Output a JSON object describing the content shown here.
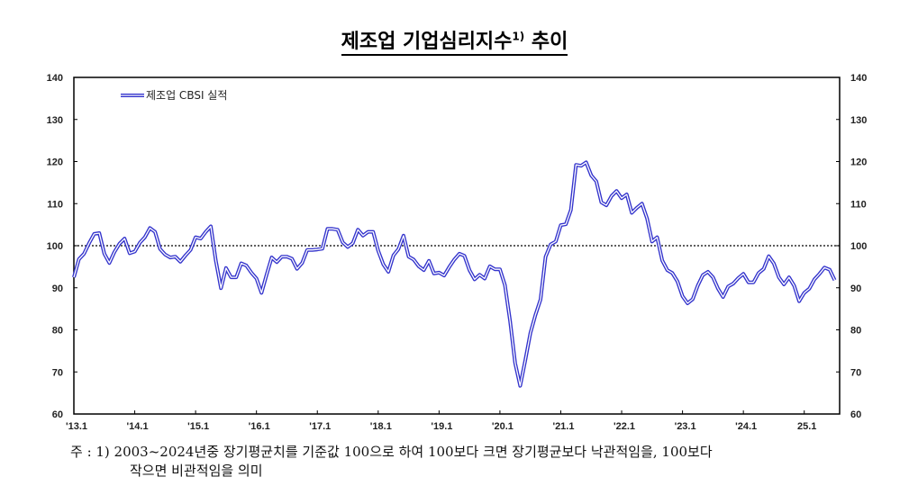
{
  "title": {
    "text": "제조업 기업심리지수",
    "sup": "1)",
    "suffix": " 추이"
  },
  "footnote": {
    "line1": "주 : 1) 2003~2024년중 장기평균치를 기준값 100으로 하여 100보다 크면 장기평균보다 낙관적임을, 100보다",
    "line2": "작으면 비관적임을 의미"
  },
  "chart_data": {
    "type": "line",
    "title": "제조업 기업심리지수1) 추이",
    "xlabel": "",
    "ylabel": "",
    "ylim": [
      60,
      140
    ],
    "yticks": [
      60,
      70,
      80,
      90,
      100,
      110,
      120,
      130,
      140
    ],
    "y_axis_both_sides": true,
    "reference_line": {
      "y": 100,
      "style": "dotted"
    },
    "xtick_labels": [
      "'13.1",
      "'14.1",
      "'15.1",
      "'16.1",
      "'17.1",
      "'18.1",
      "'19.1",
      "'20.1",
      "'21.1",
      "'22.1",
      "'23.1",
      "'24.1",
      "25.1"
    ],
    "x_start": "2013-01",
    "x_end": "2025-07",
    "frequency": "monthly",
    "legend_position": "top-left",
    "grid": false,
    "series": [
      {
        "name": "제조업 CBSI 실적",
        "color": "#3333cc",
        "values": [
          92.5,
          96.8,
          98.1,
          100.6,
          102.8,
          103,
          98.1,
          95.9,
          98.5,
          100.5,
          101.7,
          98.2,
          98.6,
          100.7,
          102,
          104.2,
          103.3,
          99.2,
          97.9,
          97.2,
          97.4,
          96.2,
          97.7,
          99,
          102,
          101.7,
          103.3,
          104.6,
          96.4,
          89.9,
          94.7,
          92.5,
          92.5,
          95.8,
          95.3,
          93.6,
          92.2,
          88.8,
          93.1,
          97.2,
          96.1,
          97.4,
          97.4,
          96.9,
          94.5,
          95.9,
          99,
          99,
          99.1,
          99.3,
          104,
          104,
          103.8,
          100.8,
          99.7,
          100.6,
          103.8,
          102.4,
          103.3,
          103.3,
          98.8,
          95.6,
          93.8,
          97.7,
          99.2,
          102.4,
          97.4,
          96.7,
          95.1,
          94.2,
          96.4,
          93.4,
          93.6,
          92.9,
          94.9,
          96.7,
          98.1,
          97.6,
          94.2,
          92,
          93.1,
          92.2,
          95.1,
          94.4,
          94.4,
          90.6,
          82.1,
          72.1,
          66.7,
          72.8,
          79.2,
          83.5,
          87.2,
          97.4,
          100.3,
          101,
          104.9,
          105.1,
          108.5,
          119.2,
          119,
          119.8,
          116.7,
          115.3,
          110.3,
          109.6,
          111.8,
          113,
          111.3,
          112.2,
          107.8,
          109,
          110,
          106.5,
          101,
          102,
          96.5,
          94.2,
          93.5,
          91.5,
          88,
          86.3,
          87.3,
          90.5,
          93,
          93.8,
          92.5,
          89.8,
          87.8,
          90.3,
          91,
          92.3,
          93.3,
          91.3,
          91.3,
          93.5,
          94.5,
          97.5,
          95.8,
          92.5,
          90.8,
          92.5,
          90.5,
          86.8,
          88.8,
          89.8,
          92,
          93.3,
          94.8,
          94.3,
          91.8
        ]
      }
    ]
  }
}
